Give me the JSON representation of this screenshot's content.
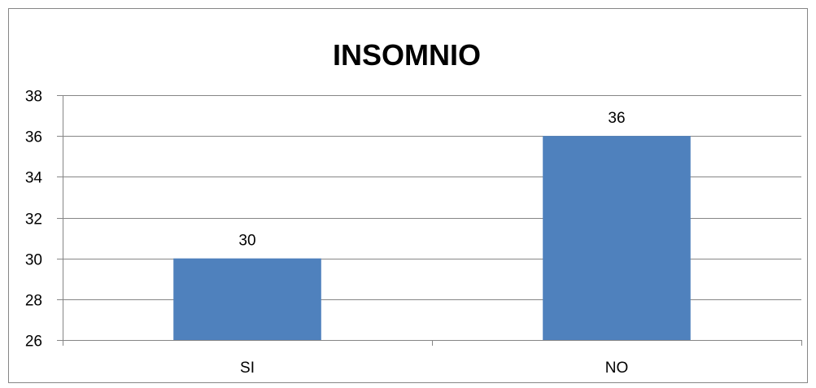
{
  "chart_data": {
    "type": "bar",
    "title": "INSOMNIO",
    "xlabel": "",
    "ylabel": "",
    "categories": [
      "SI",
      "NO"
    ],
    "series": [
      {
        "values": [
          30,
          36
        ],
        "color": "#4f81bd"
      }
    ],
    "ylim": [
      26,
      38
    ],
    "yticks": [
      26,
      28,
      30,
      32,
      34,
      36,
      38
    ],
    "grid": true,
    "legend": "none",
    "data_labels": true
  }
}
